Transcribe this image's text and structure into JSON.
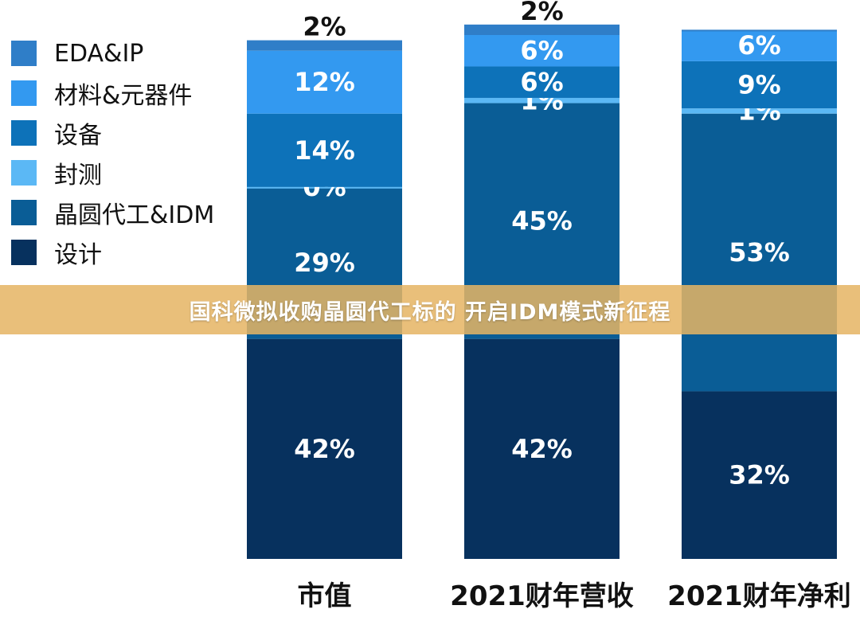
{
  "banner": {
    "text": "国科微拟收购晶圆代工标的 开启IDM模式新征程"
  },
  "colors": {
    "EDA&IP": "#2f7ec8",
    "材料&元器件": "#3399f0",
    "设备": "#0d72b9",
    "封测": "#5bb8f5",
    "晶圆代工&IDM": "#0a5d96",
    "设计": "#07315e",
    "label_text": "#ffffff",
    "label_text_top": "#111111",
    "category_text": "#111111",
    "banner_bg": "#e5b464"
  },
  "chart_data": {
    "type": "bar",
    "stacked": true,
    "percent": true,
    "categories": [
      "市值",
      "2021财年营收",
      "2021财年净利"
    ],
    "legend_position": "top-left",
    "grid": false,
    "ylim": [
      0,
      100
    ],
    "series": [
      {
        "name": "设计",
        "values": [
          42,
          42,
          32
        ],
        "labels": [
          "42%",
          "42%",
          "32%"
        ]
      },
      {
        "name": "晶圆代工&IDM",
        "values": [
          29,
          45,
          53
        ],
        "labels": [
          "29%",
          "45%",
          "53%"
        ]
      },
      {
        "name": "封测",
        "values": [
          0,
          1,
          1
        ],
        "labels": [
          "0%",
          "1%",
          "1%"
        ]
      },
      {
        "name": "设备",
        "values": [
          14,
          6,
          9
        ],
        "labels": [
          "14%",
          "6%",
          "9%"
        ]
      },
      {
        "name": "材料&元器件",
        "values": [
          12,
          6,
          6
        ],
        "labels": [
          "12%",
          "6%",
          "6%"
        ]
      },
      {
        "name": "EDA&IP",
        "values": [
          2,
          2,
          0
        ],
        "labels": [
          "2%",
          "2%",
          ""
        ]
      }
    ],
    "legend_order": [
      "EDA&IP",
      "材料&元器件",
      "设备",
      "封测",
      "晶圆代工&IDM",
      "设计"
    ]
  }
}
